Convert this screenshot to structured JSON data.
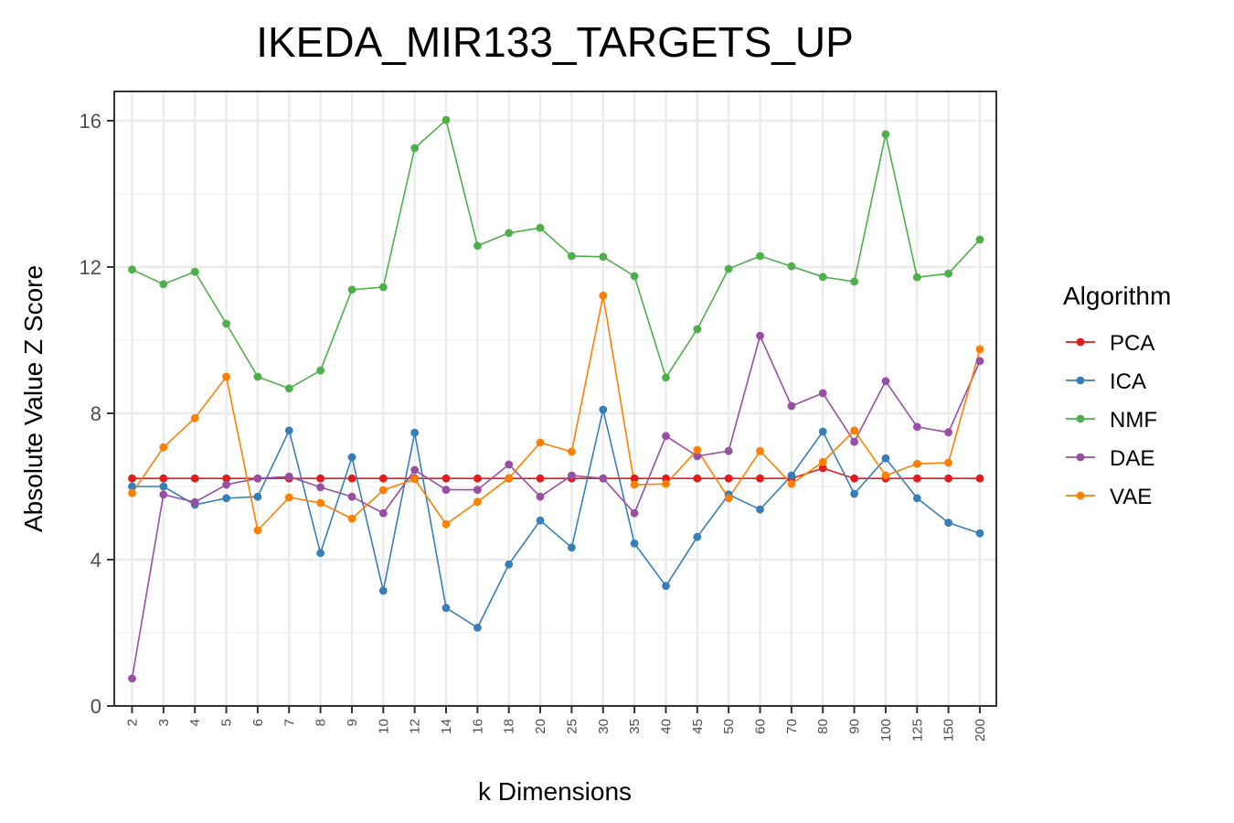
{
  "chart_data": {
    "type": "line",
    "title": "IKEDA_MIR133_TARGETS_UP",
    "xlabel": "k Dimensions",
    "ylabel": "Absolute Value Z Score",
    "categories": [
      "2",
      "3",
      "4",
      "5",
      "6",
      "7",
      "8",
      "9",
      "10",
      "12",
      "14",
      "16",
      "18",
      "20",
      "25",
      "30",
      "35",
      "40",
      "45",
      "50",
      "60",
      "70",
      "80",
      "90",
      "100",
      "125",
      "150",
      "200"
    ],
    "ylim": [
      0,
      16.8
    ],
    "yticks": [
      0,
      4,
      8,
      12,
      16
    ],
    "grid": true,
    "legend": {
      "title": "Algorithm",
      "position": "right"
    },
    "series": [
      {
        "name": "PCA",
        "color": "#e41a1c",
        "values": [
          6.22,
          6.22,
          6.22,
          6.22,
          6.22,
          6.22,
          6.22,
          6.22,
          6.22,
          6.22,
          6.22,
          6.22,
          6.22,
          6.22,
          6.22,
          6.22,
          6.22,
          6.22,
          6.22,
          6.22,
          6.22,
          6.22,
          6.5,
          6.22,
          6.22,
          6.22,
          6.22,
          6.22
        ]
      },
      {
        "name": "ICA",
        "color": "#377eb8",
        "values": [
          6.0,
          6.0,
          5.5,
          5.68,
          5.72,
          7.53,
          4.18,
          6.8,
          3.15,
          7.47,
          2.68,
          2.14,
          3.87,
          5.07,
          4.33,
          8.1,
          4.44,
          3.28,
          4.62,
          5.78,
          5.37,
          6.3,
          7.5,
          5.8,
          6.77,
          5.68,
          5.01,
          4.72
        ]
      },
      {
        "name": "NMF",
        "color": "#4daf4a",
        "values": [
          11.93,
          11.53,
          11.87,
          10.45,
          9.0,
          8.68,
          9.17,
          11.38,
          11.45,
          15.25,
          16.02,
          12.58,
          12.93,
          13.07,
          12.3,
          12.28,
          11.75,
          8.98,
          10.3,
          11.95,
          12.3,
          12.02,
          11.73,
          11.6,
          15.63,
          11.72,
          11.82,
          12.75
        ]
      },
      {
        "name": "DAE",
        "color": "#984ea3",
        "values": [
          0.75,
          5.78,
          5.57,
          6.05,
          6.22,
          6.27,
          5.98,
          5.72,
          5.27,
          6.45,
          5.91,
          5.91,
          6.6,
          5.72,
          6.3,
          6.22,
          5.27,
          7.38,
          6.83,
          6.97,
          10.12,
          8.2,
          8.55,
          7.22,
          8.88,
          7.63,
          7.48,
          9.43
        ]
      },
      {
        "name": "VAE",
        "color": "#ff7f00",
        "values": [
          5.82,
          7.07,
          7.87,
          9.0,
          4.8,
          5.7,
          5.55,
          5.12,
          5.9,
          6.2,
          4.97,
          5.58,
          6.23,
          7.2,
          6.95,
          11.22,
          6.05,
          6.07,
          7.0,
          5.68,
          6.97,
          6.07,
          6.67,
          7.53,
          6.3,
          6.62,
          6.65,
          9.75
        ]
      }
    ]
  }
}
